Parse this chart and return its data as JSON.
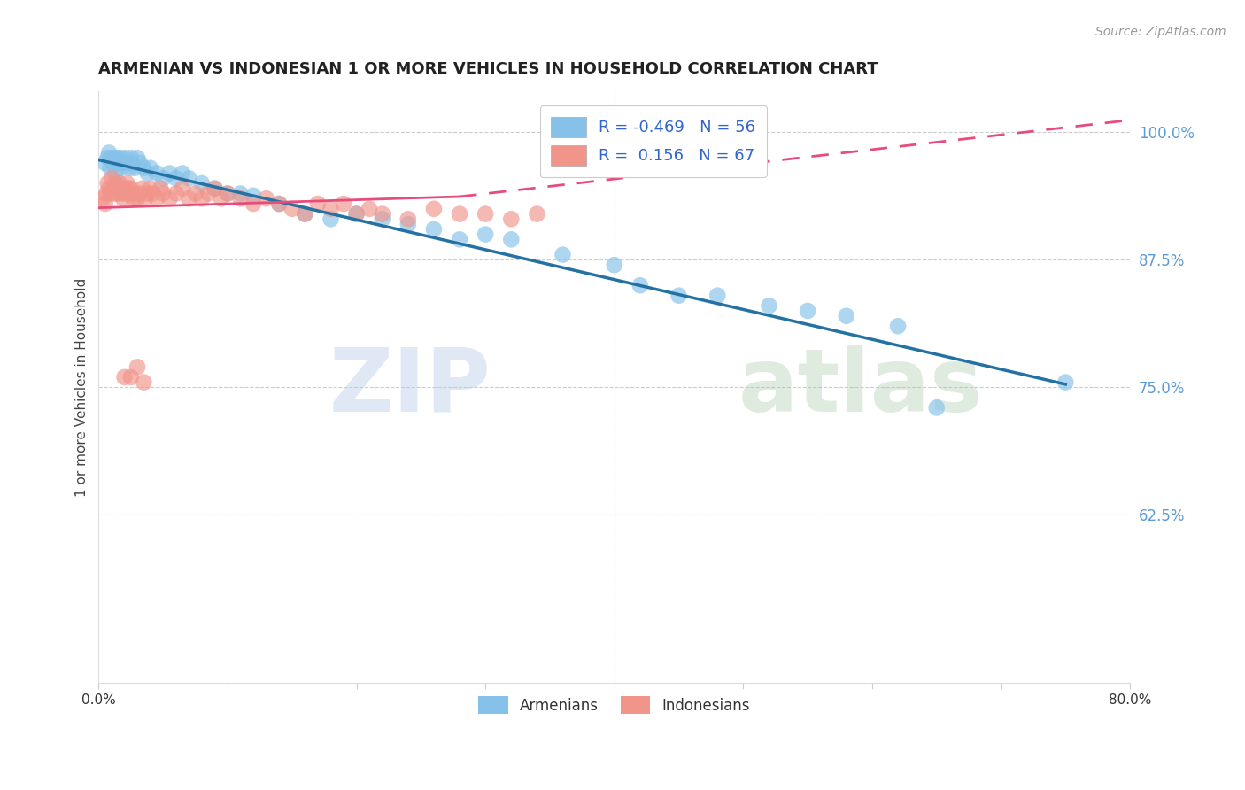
{
  "title": "ARMENIAN VS INDONESIAN 1 OR MORE VEHICLES IN HOUSEHOLD CORRELATION CHART",
  "source": "Source: ZipAtlas.com",
  "ylabel": "1 or more Vehicles in Household",
  "xlim": [
    0.0,
    0.8
  ],
  "ylim": [
    0.46,
    1.04
  ],
  "xticks": [
    0.0,
    0.1,
    0.2,
    0.3,
    0.4,
    0.5,
    0.6,
    0.7,
    0.8
  ],
  "xticklabels": [
    "0.0%",
    "",
    "",
    "",
    "",
    "",
    "",
    "",
    "80.0%"
  ],
  "yticks_right": [
    0.625,
    0.75,
    0.875,
    1.0
  ],
  "yticklabels_right": [
    "62.5%",
    "75.0%",
    "87.5%",
    "100.0%"
  ],
  "armenian_color": "#85C1E9",
  "indonesian_color": "#F1948A",
  "armenian_line_color": "#2471A3",
  "indonesian_line_color": "#E74C7C",
  "watermark_zip": "ZIP",
  "watermark_atlas": "atlas",
  "armenian_x": [
    0.005,
    0.007,
    0.008,
    0.009,
    0.01,
    0.011,
    0.012,
    0.013,
    0.014,
    0.015,
    0.016,
    0.017,
    0.018,
    0.02,
    0.022,
    0.024,
    0.025,
    0.026,
    0.028,
    0.03,
    0.032,
    0.035,
    0.038,
    0.04,
    0.045,
    0.05,
    0.055,
    0.06,
    0.065,
    0.07,
    0.08,
    0.09,
    0.1,
    0.11,
    0.12,
    0.14,
    0.16,
    0.18,
    0.2,
    0.22,
    0.24,
    0.26,
    0.28,
    0.3,
    0.32,
    0.36,
    0.4,
    0.42,
    0.45,
    0.48,
    0.52,
    0.55,
    0.58,
    0.62,
    0.65,
    0.75
  ],
  "armenian_y": [
    0.97,
    0.975,
    0.98,
    0.965,
    0.975,
    0.97,
    0.975,
    0.96,
    0.975,
    0.97,
    0.975,
    0.965,
    0.97,
    0.975,
    0.97,
    0.965,
    0.975,
    0.97,
    0.965,
    0.975,
    0.97,
    0.965,
    0.96,
    0.965,
    0.96,
    0.955,
    0.96,
    0.955,
    0.96,
    0.955,
    0.95,
    0.945,
    0.94,
    0.94,
    0.938,
    0.93,
    0.92,
    0.915,
    0.92,
    0.915,
    0.91,
    0.905,
    0.895,
    0.9,
    0.895,
    0.88,
    0.87,
    0.85,
    0.84,
    0.84,
    0.83,
    0.825,
    0.82,
    0.81,
    0.73,
    0.755
  ],
  "indonesian_x": [
    0.003,
    0.005,
    0.006,
    0.007,
    0.008,
    0.009,
    0.01,
    0.011,
    0.012,
    0.013,
    0.014,
    0.015,
    0.016,
    0.017,
    0.018,
    0.019,
    0.02,
    0.021,
    0.022,
    0.023,
    0.024,
    0.025,
    0.026,
    0.027,
    0.028,
    0.03,
    0.032,
    0.034,
    0.036,
    0.038,
    0.04,
    0.042,
    0.045,
    0.048,
    0.05,
    0.055,
    0.06,
    0.065,
    0.07,
    0.075,
    0.08,
    0.085,
    0.09,
    0.095,
    0.1,
    0.11,
    0.12,
    0.13,
    0.14,
    0.15,
    0.16,
    0.17,
    0.18,
    0.19,
    0.2,
    0.21,
    0.22,
    0.24,
    0.26,
    0.28,
    0.3,
    0.32,
    0.34,
    0.02,
    0.025,
    0.03,
    0.035
  ],
  "indonesian_y": [
    0.935,
    0.93,
    0.94,
    0.95,
    0.945,
    0.94,
    0.955,
    0.945,
    0.94,
    0.95,
    0.945,
    0.94,
    0.95,
    0.945,
    0.94,
    0.935,
    0.945,
    0.94,
    0.95,
    0.945,
    0.94,
    0.945,
    0.94,
    0.935,
    0.94,
    0.935,
    0.94,
    0.945,
    0.935,
    0.94,
    0.945,
    0.94,
    0.935,
    0.945,
    0.94,
    0.935,
    0.94,
    0.945,
    0.935,
    0.94,
    0.935,
    0.94,
    0.945,
    0.935,
    0.94,
    0.935,
    0.93,
    0.935,
    0.93,
    0.925,
    0.92,
    0.93,
    0.925,
    0.93,
    0.92,
    0.925,
    0.92,
    0.915,
    0.925,
    0.92,
    0.92,
    0.915,
    0.92,
    0.76,
    0.76,
    0.77,
    0.755
  ],
  "arm_line_x0": 0.0,
  "arm_line_y0": 0.973,
  "arm_line_x1": 0.75,
  "arm_line_y1": 0.753,
  "ind_line_solid_x0": 0.0,
  "ind_line_solid_y0": 0.926,
  "ind_line_solid_x1": 0.28,
  "ind_line_solid_y1": 0.937,
  "ind_line_dash_x0": 0.28,
  "ind_line_dash_y0": 0.937,
  "ind_line_dash_x1": 0.8,
  "ind_line_dash_y1": 1.012
}
